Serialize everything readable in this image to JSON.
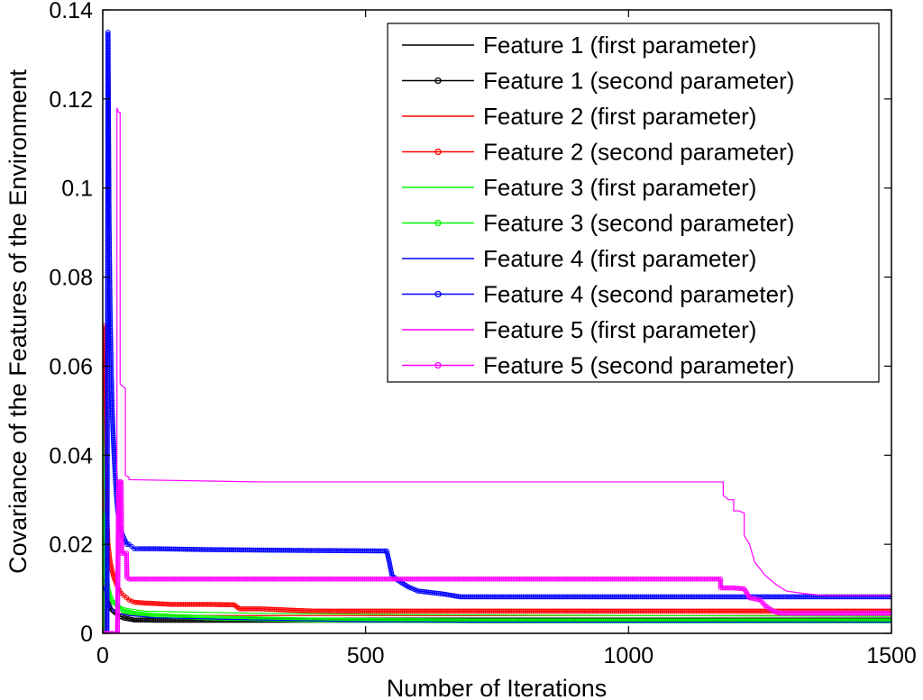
{
  "chart_data": {
    "type": "line",
    "title": "",
    "xlabel": "Number of Iterations",
    "ylabel": "Covariance of the Features of the Environment",
    "xlim": [
      0,
      1500
    ],
    "ylim": [
      0,
      0.14
    ],
    "xticks": [
      0,
      500,
      1000,
      1500
    ],
    "xtick_labels": [
      "0",
      "500",
      "1000",
      "1500"
    ],
    "yticks": [
      0,
      0.02,
      0.04,
      0.06,
      0.08,
      0.1,
      0.12,
      0.14
    ],
    "ytick_labels": [
      "0",
      "0.02",
      "0.04",
      "0.06",
      "0.08",
      "0.1",
      "0.12",
      "0.14"
    ],
    "grid": false,
    "legend_position": "top-right",
    "series": [
      {
        "name": "Feature 1 (first parameter)",
        "color": "#000000",
        "marker": "none",
        "x": [
          0,
          2,
          4,
          6,
          8,
          10,
          12,
          15,
          20,
          25,
          30,
          40,
          50,
          60,
          80,
          100,
          200,
          500,
          1000,
          1500
        ],
        "y": [
          0.013,
          0.012,
          0.01,
          0.008,
          0.007,
          0.006,
          0.0055,
          0.005,
          0.0045,
          0.004,
          0.0035,
          0.003,
          0.0028,
          0.0027,
          0.0026,
          0.0025,
          0.0025,
          0.0025,
          0.0025,
          0.0025
        ]
      },
      {
        "name": "Feature 1 (second parameter)",
        "color": "#000000",
        "marker": "circle",
        "x": [
          0,
          1,
          2,
          3,
          4,
          6,
          8,
          10,
          15,
          20,
          30,
          40,
          60,
          100,
          300,
          600,
          1000,
          1500
        ],
        "y": [
          0.0,
          0.016,
          0.024,
          0.019,
          0.013,
          0.01,
          0.008,
          0.007,
          0.0055,
          0.005,
          0.004,
          0.0035,
          0.003,
          0.003,
          0.003,
          0.003,
          0.003,
          0.003
        ]
      },
      {
        "name": "Feature 2 (first parameter)",
        "color": "#ff0000",
        "marker": "none",
        "x": [
          0,
          3,
          5,
          7,
          10,
          15,
          20,
          30,
          50,
          100,
          300,
          600,
          1000,
          1500
        ],
        "y": [
          0.015,
          0.013,
          0.011,
          0.009,
          0.007,
          0.006,
          0.005,
          0.0045,
          0.0042,
          0.004,
          0.004,
          0.004,
          0.004,
          0.004
        ]
      },
      {
        "name": "Feature 2 (second parameter)",
        "color": "#ff0000",
        "marker": "circle",
        "x": [
          0,
          3,
          4,
          5,
          6,
          7,
          8,
          9,
          10,
          12,
          14,
          16,
          18,
          20,
          23,
          26,
          30,
          35,
          40,
          45,
          50,
          60,
          80,
          100,
          130,
          200,
          250,
          260,
          300,
          400,
          600,
          1000,
          1500
        ],
        "y": [
          0.0,
          0.0,
          0.069,
          0.047,
          0.036,
          0.029,
          0.026,
          0.023,
          0.02,
          0.018,
          0.016,
          0.015,
          0.014,
          0.013,
          0.012,
          0.011,
          0.01,
          0.009,
          0.0085,
          0.008,
          0.0075,
          0.007,
          0.0068,
          0.0067,
          0.0065,
          0.0065,
          0.0064,
          0.0055,
          0.0055,
          0.005,
          0.005,
          0.005,
          0.005
        ]
      },
      {
        "name": "Feature 3 (first parameter)",
        "color": "#00ff00",
        "marker": "none",
        "x": [
          0,
          2,
          4,
          6,
          8,
          10,
          15,
          20,
          30,
          50,
          80,
          150,
          300,
          600,
          1000,
          1500
        ],
        "y": [
          0.056,
          0.04,
          0.025,
          0.018,
          0.013,
          0.01,
          0.008,
          0.007,
          0.006,
          0.0055,
          0.005,
          0.0048,
          0.0045,
          0.0042,
          0.004,
          0.0038
        ]
      },
      {
        "name": "Feature 3 (second parameter)",
        "color": "#00ff00",
        "marker": "circle",
        "x": [
          0,
          1,
          2,
          3,
          4,
          6,
          8,
          10,
          15,
          20,
          30,
          40,
          60,
          100,
          200,
          400,
          700,
          1000,
          1500
        ],
        "y": [
          0.0,
          0.0,
          0.027,
          0.022,
          0.018,
          0.014,
          0.012,
          0.01,
          0.008,
          0.007,
          0.006,
          0.005,
          0.0045,
          0.004,
          0.0035,
          0.003,
          0.0028,
          0.0028,
          0.0028
        ]
      },
      {
        "name": "Feature 4 (first parameter)",
        "color": "#0000ff",
        "marker": "none",
        "x": [
          0,
          5,
          10,
          15,
          20,
          30,
          50,
          100,
          300,
          500,
          700,
          1000,
          1500
        ],
        "y": [
          0.011,
          0.009,
          0.007,
          0.006,
          0.005,
          0.0045,
          0.004,
          0.0035,
          0.003,
          0.0026,
          0.0025,
          0.0025,
          0.0025
        ]
      },
      {
        "name": "Feature 4 (second parameter)",
        "color": "#0000ff",
        "marker": "circle",
        "x": [
          0,
          8,
          10,
          12,
          14,
          16,
          18,
          20,
          22,
          24,
          26,
          28,
          30,
          32,
          35,
          38,
          42,
          46,
          50,
          55,
          60,
          70,
          100,
          200,
          400,
          540,
          545,
          550,
          560,
          580,
          600,
          650,
          680,
          800,
          1000,
          1500
        ],
        "y": [
          0.0,
          0.0,
          0.135,
          0.093,
          0.072,
          0.059,
          0.05,
          0.044,
          0.039,
          0.035,
          0.031,
          0.028,
          0.026,
          0.024,
          0.023,
          0.022,
          0.021,
          0.02,
          0.02,
          0.0195,
          0.019,
          0.019,
          0.019,
          0.0188,
          0.0186,
          0.0185,
          0.016,
          0.013,
          0.012,
          0.0105,
          0.0095,
          0.0088,
          0.0082,
          0.0082,
          0.0082,
          0.0082
        ]
      },
      {
        "name": "Feature 5 (first parameter)",
        "color": "#ff00ff",
        "marker": "none",
        "x": [
          0,
          20,
          22,
          27,
          27,
          30,
          33,
          33,
          43,
          43,
          50,
          50,
          300,
          700,
          1000,
          1180,
          1180,
          1190,
          1200,
          1200,
          1210,
          1220,
          1220,
          1230,
          1240,
          1260,
          1280,
          1300,
          1330,
          1370,
          1400,
          1500
        ],
        "y": [
          0.0,
          0.0,
          0.0,
          0.0,
          0.118,
          0.117,
          0.117,
          0.056,
          0.055,
          0.0355,
          0.035,
          0.0345,
          0.034,
          0.034,
          0.034,
          0.034,
          0.031,
          0.03,
          0.03,
          0.0275,
          0.0275,
          0.027,
          0.022,
          0.02,
          0.016,
          0.013,
          0.011,
          0.0095,
          0.009,
          0.0085,
          0.0085,
          0.0085
        ]
      },
      {
        "name": "Feature 5 (second parameter)",
        "color": "#ff00ff",
        "marker": "circle",
        "x": [
          0,
          20,
          26,
          28,
          30,
          31,
          33,
          35,
          36,
          45,
          46,
          50,
          400,
          800,
          1000,
          1175,
          1175,
          1200,
          1220,
          1230,
          1250,
          1260,
          1275,
          1290,
          1400,
          1500
        ],
        "y": [
          0.0,
          0.0,
          0.0,
          0.0,
          0.032,
          0.034,
          0.034,
          0.034,
          0.018,
          0.018,
          0.0125,
          0.0122,
          0.0122,
          0.0122,
          0.0122,
          0.0122,
          0.0102,
          0.0102,
          0.01,
          0.008,
          0.0075,
          0.0062,
          0.005,
          0.0045,
          0.0045,
          0.0045
        ]
      }
    ]
  }
}
